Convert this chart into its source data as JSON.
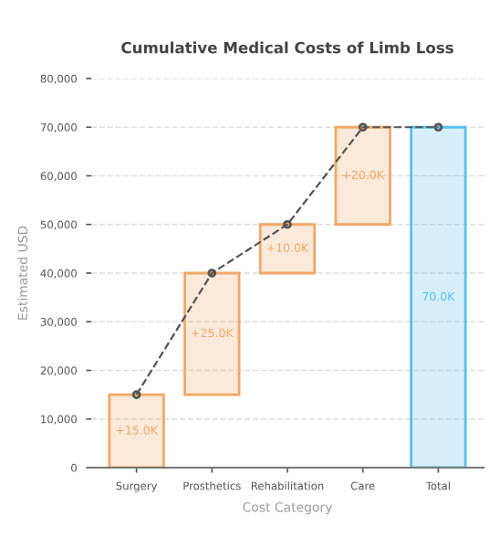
{
  "chart_data": {
    "type": "bar",
    "title": "Cumulative Medical Costs of Limb Loss",
    "xlabel": "Cost Category",
    "ylabel": "Estimated USD",
    "categories": [
      "Surgery",
      "Prosthetics",
      "Rehabilitation",
      "Care",
      "Total"
    ],
    "series": [
      {
        "values": [
          15000,
          25000,
          10000,
          20000,
          70000
        ],
        "base": [
          0,
          15000,
          40000,
          50000,
          0
        ],
        "colors": [
          "#f0a868",
          "#f0a868",
          "#f0a868",
          "#f0a868",
          "#5bc0eb"
        ],
        "value_labels": [
          "+15.0K",
          "+25.0K",
          "+10.0K",
          "+20.0K",
          "70.0K"
        ]
      },
      {
        "type": "line",
        "values": [
          15000,
          40000,
          50000,
          70000,
          70000
        ],
        "color": "#555555",
        "line_style": "dashed",
        "marker": "circle"
      }
    ],
    "ylim": [
      0,
      80000
    ],
    "yticks": [
      {
        "value": 0,
        "label": "0"
      },
      {
        "value": 10000,
        "label": "10,000"
      },
      {
        "value": 20000,
        "label": "20,000"
      },
      {
        "value": 30000,
        "label": "30,000"
      },
      {
        "value": 40000,
        "label": "40,000"
      },
      {
        "value": 50000,
        "label": "50,000"
      },
      {
        "value": 60000,
        "label": "60,000"
      },
      {
        "value": 70000,
        "label": "70,000"
      },
      {
        "value": 80000,
        "label": "80,000"
      }
    ],
    "grid": "y"
  }
}
